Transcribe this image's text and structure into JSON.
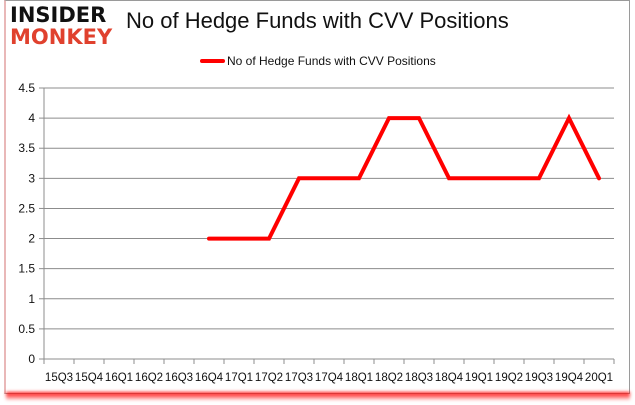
{
  "branding": {
    "logo_line1": "INSIDER",
    "logo_line2": "MONKEY"
  },
  "chart_data": {
    "type": "line",
    "title": "No of Hedge Funds with CVV Positions",
    "xlabel": "",
    "ylabel": "",
    "ylim": [
      0,
      4.5
    ],
    "yticks": [
      "0",
      "0.5",
      "1",
      "1.5",
      "2",
      "2.5",
      "3",
      "3.5",
      "4",
      "4.5"
    ],
    "grid": true,
    "legend_position": "top",
    "categories": [
      "15Q3",
      "15Q4",
      "16Q1",
      "16Q2",
      "16Q3",
      "16Q4",
      "17Q1",
      "17Q2",
      "17Q3",
      "17Q4",
      "18Q1",
      "18Q2",
      "18Q3",
      "18Q4",
      "19Q1",
      "19Q2",
      "19Q3",
      "19Q4",
      "20Q1"
    ],
    "series": [
      {
        "name": "No of Hedge Funds with CVV Positions",
        "color": "#ff0000",
        "values": [
          null,
          null,
          null,
          null,
          null,
          2,
          2,
          2,
          3,
          3,
          3,
          4,
          4,
          3,
          3,
          3,
          3,
          4,
          3
        ]
      }
    ]
  }
}
